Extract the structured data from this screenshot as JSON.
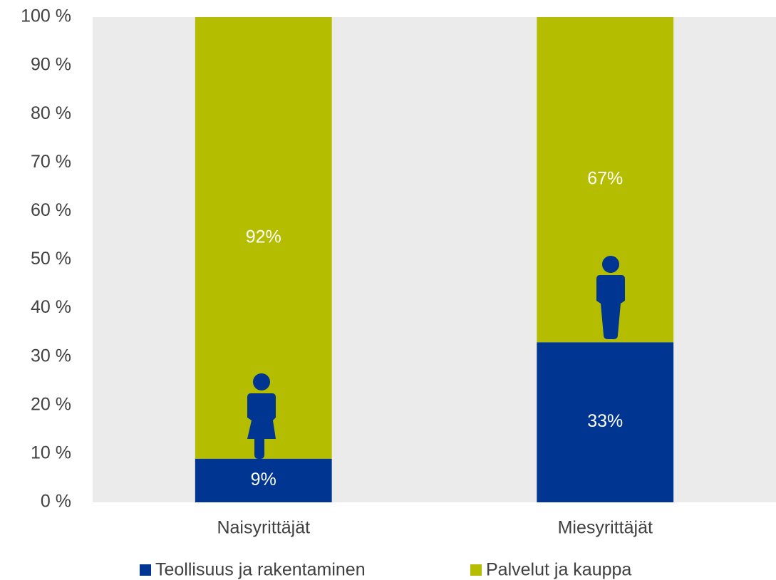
{
  "chart_data": {
    "type": "stacked_bar",
    "categories": [
      "Naisyrittäjät",
      "Miesyrittäjät"
    ],
    "series": [
      {
        "name": "Teollisuus ja rakentaminen",
        "color": "#003591",
        "values": [
          9,
          33
        ],
        "value_labels": [
          "9%",
          "33%"
        ]
      },
      {
        "name": "Palvelut ja kauppa",
        "color": "#b5bd00",
        "values": [
          92,
          67
        ],
        "value_labels": [
          "92%",
          "67%"
        ]
      }
    ],
    "ylim": [
      0,
      100
    ],
    "yticks": [
      {
        "value": 0,
        "label": "0 %"
      },
      {
        "value": 10,
        "label": "10 %"
      },
      {
        "value": 20,
        "label": "20 %"
      },
      {
        "value": 30,
        "label": "30 %"
      },
      {
        "value": 40,
        "label": "40 %"
      },
      {
        "value": 50,
        "label": "50 %"
      },
      {
        "value": 60,
        "label": "60 %"
      },
      {
        "value": 70,
        "label": "70 %"
      },
      {
        "value": 80,
        "label": "80 %"
      },
      {
        "value": 90,
        "label": "90 %"
      },
      {
        "value": 100,
        "label": "100 %"
      }
    ],
    "legend": "bottom"
  }
}
